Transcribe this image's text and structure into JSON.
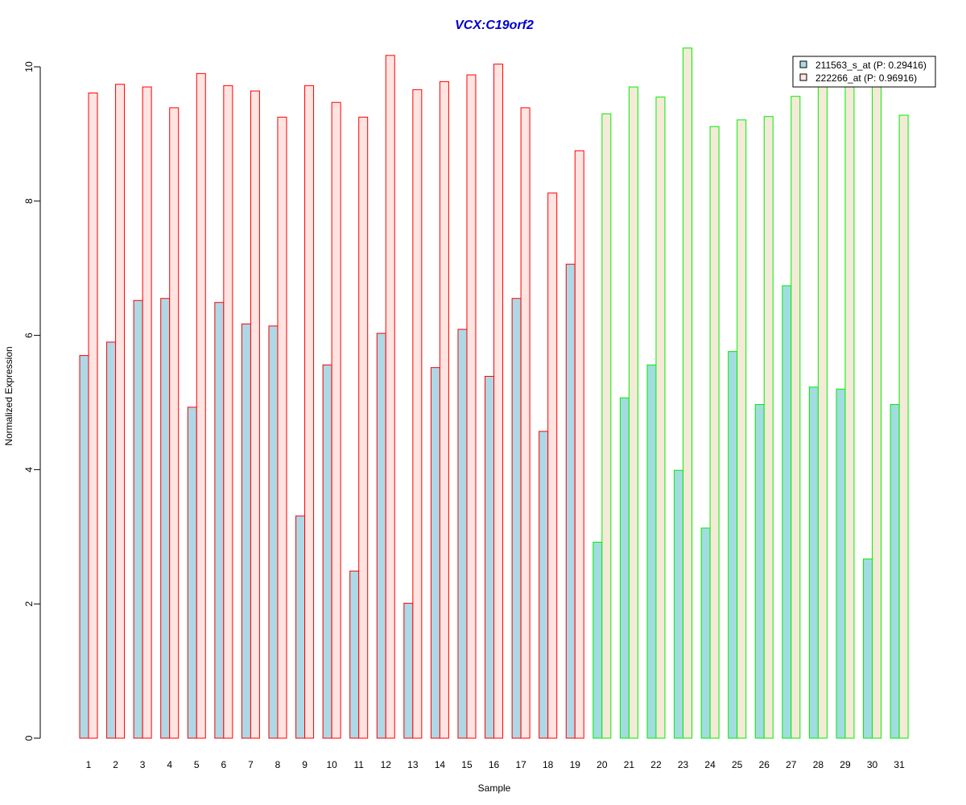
{
  "chart_data": {
    "type": "bar",
    "title": "VCX:C19orf2",
    "xlabel": "Sample",
    "ylabel": "Normalized Expression",
    "ylim": [
      0,
      10.3
    ],
    "yticks": [
      0,
      2,
      4,
      6,
      8,
      10
    ],
    "grid": false,
    "legend_position": "top-right",
    "categories": [
      "1",
      "2",
      "3",
      "4",
      "5",
      "6",
      "7",
      "8",
      "9",
      "10",
      "11",
      "12",
      "13",
      "14",
      "15",
      "16",
      "17",
      "18",
      "19",
      "20",
      "21",
      "22",
      "23",
      "24",
      "25",
      "26",
      "27",
      "28",
      "29",
      "30",
      "31"
    ],
    "groups": [
      {
        "samples": [
          "1",
          "2",
          "3",
          "4",
          "5",
          "6",
          "7",
          "8",
          "9",
          "10",
          "11",
          "12",
          "13",
          "14",
          "15",
          "16",
          "17",
          "18",
          "19"
        ],
        "border_color": "#ff0000",
        "fills": [
          "#add8e6",
          "#ffe4e1"
        ]
      },
      {
        "samples": [
          "20",
          "21",
          "22",
          "23",
          "24",
          "25",
          "26",
          "27",
          "28",
          "29",
          "30",
          "31"
        ],
        "border_color": "#00ee00",
        "fills": [
          "#a0dce0",
          "#f5ead7"
        ]
      }
    ],
    "series": [
      {
        "name": "211563_s_at (P: 0.29416)",
        "values": [
          5.7,
          5.9,
          6.52,
          6.55,
          4.93,
          6.49,
          6.17,
          6.14,
          3.31,
          5.56,
          2.49,
          6.03,
          2.01,
          5.52,
          6.09,
          5.39,
          6.55,
          4.57,
          7.06,
          2.92,
          5.07,
          5.56,
          3.99,
          3.13,
          5.76,
          4.97,
          6.74,
          5.23,
          5.2,
          2.67,
          4.97
        ]
      },
      {
        "name": "222266_at (P: 0.96916)",
        "values": [
          9.61,
          9.74,
          9.7,
          9.39,
          9.9,
          9.72,
          9.64,
          9.25,
          9.72,
          9.47,
          9.25,
          10.17,
          9.66,
          9.78,
          9.88,
          10.04,
          9.39,
          8.12,
          8.75,
          9.3,
          9.7,
          9.55,
          10.28,
          9.11,
          9.21,
          9.26,
          9.56,
          9.85,
          9.9,
          9.9,
          9.28
        ]
      }
    ]
  }
}
